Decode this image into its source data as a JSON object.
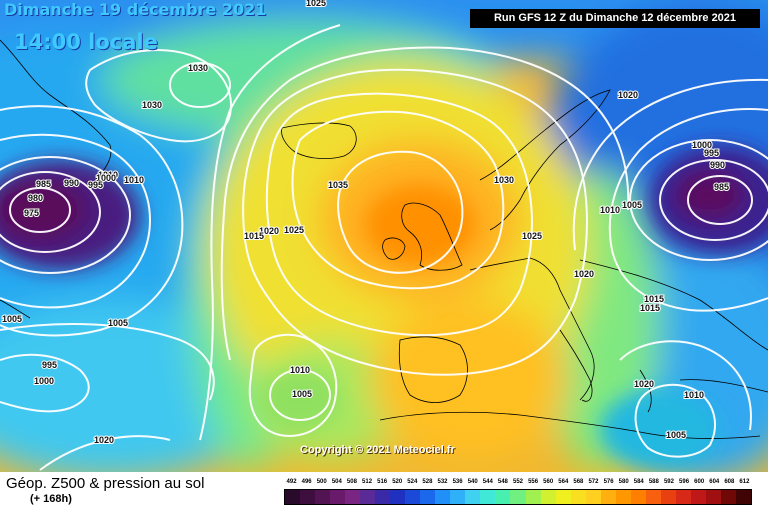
{
  "header": {
    "date": "Dimanche 19 décembre 2021",
    "time": "14:00 locale",
    "run": "Run GFS 12 Z du Dimanche 12 décembre 2021"
  },
  "copyright": "Copyright © 2021 Meteociel.fr",
  "footer": {
    "title": "Géop. Z500 & pression au sol",
    "subtitle": "(+ 168h)"
  },
  "legend": {
    "ticks": [
      "492",
      "496",
      "500",
      "504",
      "508",
      "512",
      "516",
      "520",
      "524",
      "528",
      "532",
      "536",
      "540",
      "544",
      "548",
      "552",
      "556",
      "560",
      "564",
      "568",
      "572",
      "576",
      "580",
      "584",
      "588",
      "592",
      "596",
      "600",
      "604",
      "608",
      "612"
    ],
    "colors": [
      "#2a0a2a",
      "#3e0f3e",
      "#521452",
      "#6a1a6a",
      "#7a2582",
      "#5a2a96",
      "#3a2aa8",
      "#2030c0",
      "#1c4ad8",
      "#1c68ec",
      "#2090f8",
      "#30b0f8",
      "#40d0f0",
      "#40e8d8",
      "#48f0b0",
      "#70f080",
      "#a0f050",
      "#d0f030",
      "#f0f020",
      "#f8e020",
      "#ffd020",
      "#ffb010",
      "#ff9800",
      "#ff8000",
      "#f86010",
      "#e84010",
      "#d82818",
      "#c01818",
      "#a01010",
      "#700808",
      "#400404"
    ]
  },
  "isobars": [
    {
      "value": "1030",
      "name": "isobar-1030-a"
    },
    {
      "value": "1030",
      "name": "isobar-1030-b"
    },
    {
      "value": "1030",
      "name": "isobar-1030-c"
    },
    {
      "value": "1035",
      "name": "isobar-1035"
    },
    {
      "value": "1025",
      "name": "isobar-1025-a"
    },
    {
      "value": "1025",
      "name": "isobar-1025-b"
    },
    {
      "value": "1020",
      "name": "isobar-1020-a"
    },
    {
      "value": "1020",
      "name": "isobar-1020-b"
    },
    {
      "value": "1020",
      "name": "isobar-1020-c"
    },
    {
      "value": "1020",
      "name": "isobar-1020-d"
    },
    {
      "value": "1015",
      "name": "isobar-1015-a"
    },
    {
      "value": "1015",
      "name": "isobar-1015-b"
    },
    {
      "value": "1015",
      "name": "isobar-1015-c"
    },
    {
      "value": "1010",
      "name": "isobar-1010-a"
    },
    {
      "value": "1010",
      "name": "isobar-1010-b"
    },
    {
      "value": "1010",
      "name": "isobar-1010-c"
    },
    {
      "value": "1010",
      "name": "isobar-1010-d"
    },
    {
      "value": "1010",
      "name": "isobar-1010-e"
    },
    {
      "value": "1005",
      "name": "isobar-1005-a"
    },
    {
      "value": "1005",
      "name": "isobar-1005-b"
    },
    {
      "value": "1005",
      "name": "isobar-1005-c"
    },
    {
      "value": "1005",
      "name": "isobar-1005-d"
    },
    {
      "value": "1005",
      "name": "isobar-1005-e"
    },
    {
      "value": "1000",
      "name": "isobar-1000-a"
    },
    {
      "value": "1000",
      "name": "isobar-1000-b"
    },
    {
      "value": "1000",
      "name": "isobar-1000-c"
    },
    {
      "value": "995",
      "name": "isobar-995-a"
    },
    {
      "value": "995",
      "name": "isobar-995-b"
    },
    {
      "value": "995",
      "name": "isobar-995-c"
    },
    {
      "value": "990",
      "name": "isobar-990-a"
    },
    {
      "value": "990",
      "name": "isobar-990-b"
    },
    {
      "value": "985",
      "name": "isobar-985-a"
    },
    {
      "value": "985",
      "name": "isobar-985-b"
    },
    {
      "value": "980",
      "name": "isobar-980"
    },
    {
      "value": "975",
      "name": "isobar-975"
    },
    {
      "value": "1025",
      "name": "isobar-1025-c"
    },
    {
      "value": "1020",
      "name": "isobar-1020-e"
    }
  ]
}
